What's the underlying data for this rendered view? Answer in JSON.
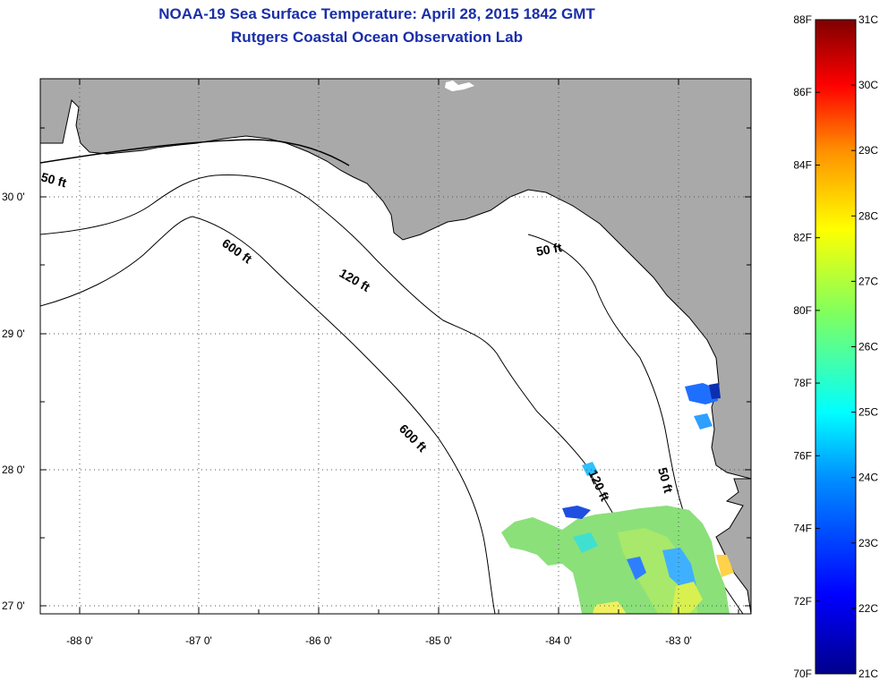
{
  "title": {
    "line1": "NOAA-19 Sea Surface Temperature:  April 28, 2015 1842 GMT",
    "line2": "Rutgers Coastal Ocean Observation Lab"
  },
  "map": {
    "lon_ticks": [
      "-88 0'",
      "-87 0'",
      "-86 0'",
      "-85 0'",
      "-84 0'",
      "-83 0'"
    ],
    "lat_ticks": [
      "30 0'",
      "29 0'",
      "28 0'",
      "27 0'"
    ],
    "contours": [
      "50 ft",
      "120 ft",
      "600 ft",
      "600 ft",
      "120 ft",
      "50 ft",
      "50 ft"
    ],
    "colors": {
      "land": "#a9a9a9",
      "ocean": "#ffffff",
      "grid": "#444444"
    }
  },
  "colorbar": {
    "fahrenheit": [
      "88F",
      "86F",
      "84F",
      "82F",
      "80F",
      "78F",
      "76F",
      "74F",
      "72F",
      "70F"
    ],
    "celsius": [
      "31C",
      "30C",
      "29C",
      "28C",
      "27C",
      "26C",
      "25C",
      "24C",
      "23C",
      "22C",
      "21C"
    ]
  }
}
